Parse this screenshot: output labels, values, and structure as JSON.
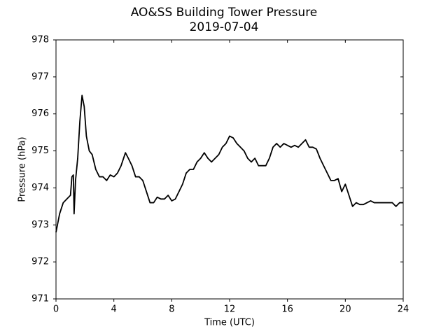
{
  "chart_data": {
    "type": "line",
    "title": "AO&SS Building Tower Pressure",
    "subtitle": "2019-07-04",
    "x_label": "Time (UTC)",
    "y_label": "Pressure (hPa)",
    "x": [
      0,
      0.25,
      0.5,
      0.75,
      1.0,
      1.1,
      1.2,
      1.25,
      1.35,
      1.5,
      1.65,
      1.8,
      1.95,
      2.1,
      2.3,
      2.5,
      2.75,
      3.0,
      3.25,
      3.5,
      3.75,
      4.0,
      4.25,
      4.5,
      4.8,
      5.0,
      5.25,
      5.5,
      5.75,
      6.0,
      6.25,
      6.5,
      6.75,
      7.0,
      7.25,
      7.5,
      7.75,
      8.0,
      8.25,
      8.5,
      8.75,
      9.0,
      9.25,
      9.5,
      9.75,
      10.0,
      10.25,
      10.5,
      10.75,
      11.0,
      11.25,
      11.5,
      11.75,
      12.0,
      12.25,
      12.5,
      12.75,
      13.0,
      13.25,
      13.5,
      13.75,
      14.0,
      14.25,
      14.5,
      14.75,
      15.0,
      15.25,
      15.5,
      15.75,
      16.0,
      16.25,
      16.5,
      16.75,
      17.0,
      17.25,
      17.5,
      17.75,
      18.0,
      18.25,
      18.5,
      18.75,
      19.0,
      19.25,
      19.5,
      19.75,
      20.0,
      20.25,
      20.5,
      20.75,
      21.0,
      21.25,
      21.5,
      21.75,
      22.0,
      22.25,
      22.5,
      22.75,
      23.0,
      23.25,
      23.5,
      23.75,
      24.0
    ],
    "series": [
      {
        "name": "Pressure",
        "color": "#000000",
        "values": [
          972.8,
          973.3,
          973.6,
          973.7,
          973.8,
          974.3,
          974.35,
          973.3,
          974.2,
          974.8,
          975.8,
          976.5,
          976.2,
          975.4,
          975.0,
          974.9,
          974.5,
          974.3,
          974.3,
          974.2,
          974.35,
          974.3,
          974.4,
          974.6,
          974.95,
          974.8,
          974.6,
          974.3,
          974.3,
          974.2,
          973.9,
          973.6,
          973.6,
          973.75,
          973.7,
          973.7,
          973.8,
          973.65,
          973.7,
          973.9,
          974.1,
          974.4,
          974.5,
          974.5,
          974.7,
          974.8,
          974.95,
          974.8,
          974.7,
          974.8,
          974.9,
          975.1,
          975.2,
          975.4,
          975.35,
          975.2,
          975.1,
          975.0,
          974.8,
          974.7,
          974.8,
          974.6,
          974.6,
          974.6,
          974.8,
          975.1,
          975.2,
          975.1,
          975.2,
          975.15,
          975.1,
          975.15,
          975.1,
          975.2,
          975.3,
          975.1,
          975.1,
          975.05,
          974.8,
          974.6,
          974.4,
          974.2,
          974.2,
          974.25,
          973.9,
          974.1,
          973.8,
          973.5,
          973.6,
          973.55,
          973.55,
          973.6,
          973.65,
          973.6,
          973.6,
          973.6,
          973.6,
          973.6,
          973.6,
          973.5,
          973.6,
          973.6
        ]
      }
    ],
    "xlim": [
      0,
      24
    ],
    "xticks": [
      0,
      4,
      8,
      12,
      16,
      20,
      24
    ],
    "ylim": [
      971,
      978
    ],
    "yticks": [
      971,
      972,
      973,
      974,
      975,
      976,
      977,
      978
    ],
    "grid": false
  }
}
